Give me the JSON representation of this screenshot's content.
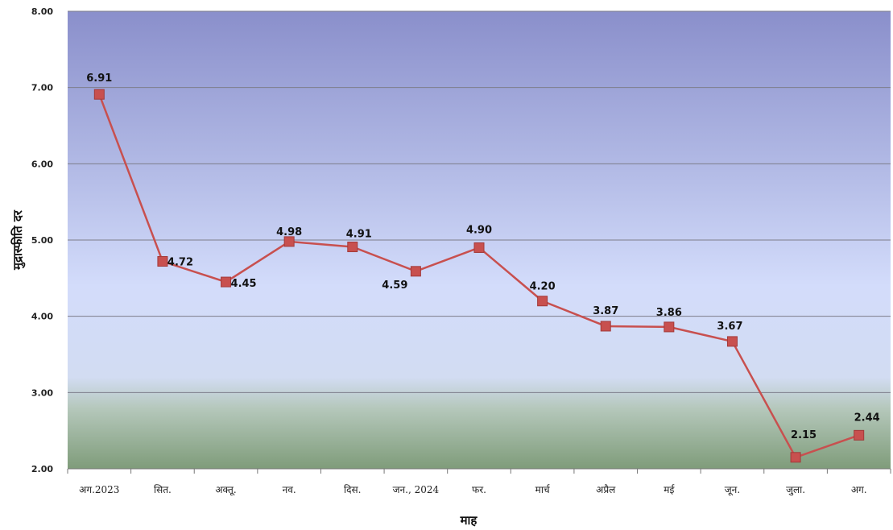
{
  "chart_data": {
    "type": "line",
    "xlabel": "माह",
    "ylabel": "मुद्रास्फीति दर",
    "ylim": [
      2.0,
      8.0
    ],
    "yticks": [
      "2.00",
      "3.00",
      "4.00",
      "5.00",
      "6.00",
      "7.00",
      "8.00"
    ],
    "grid": true,
    "categories": [
      "अग.2023",
      "सित.",
      "अक्तू.",
      "नव.",
      "दिस.",
      "जन., 2024",
      "फर.",
      "मार्च",
      "अप्रैल",
      "मई",
      "जून.",
      "जुला.",
      "अग."
    ],
    "series": [
      {
        "values": [
          6.91,
          4.72,
          4.45,
          4.98,
          4.91,
          4.59,
          4.9,
          4.2,
          3.87,
          3.86,
          3.67,
          2.15,
          2.44
        ],
        "labels": [
          "6.91",
          "4.72",
          "4.45",
          "4.98",
          "4.91",
          "4.59",
          "4.90",
          "4.20",
          "3.87",
          "3.86",
          "3.67",
          "2.15",
          "2.44"
        ],
        "color": "#c8504f"
      }
    ]
  }
}
